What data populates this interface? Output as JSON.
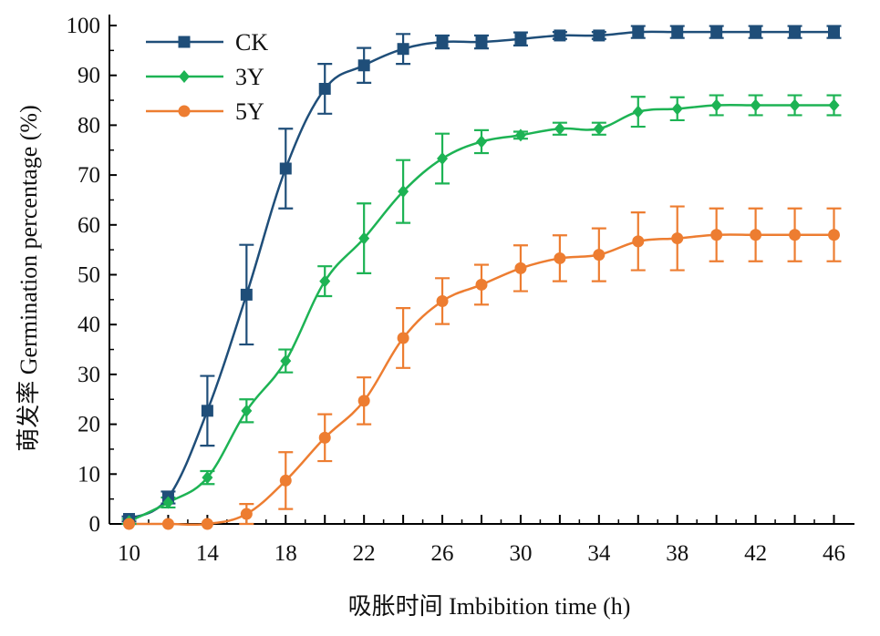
{
  "chart_data": {
    "type": "line",
    "xlabel": "吸胀时间 Imbibition time (h)",
    "ylabel": "萌发率 Germination percentage (%)",
    "xlim": [
      10,
      46
    ],
    "ylim": [
      0,
      100
    ],
    "x_ticks": [
      10,
      14,
      18,
      22,
      26,
      30,
      34,
      38,
      42,
      46
    ],
    "y_ticks": [
      0,
      10,
      20,
      30,
      40,
      50,
      60,
      70,
      80,
      90,
      100
    ],
    "grid": false,
    "legend_position": "top-left",
    "x": [
      10,
      12,
      14,
      16,
      18,
      20,
      22,
      24,
      26,
      28,
      30,
      32,
      34,
      36,
      38,
      40,
      42,
      44,
      46
    ],
    "series": [
      {
        "name": "CK",
        "color": "#1f4e79",
        "marker": "square",
        "values": [
          1,
          5.3,
          22.7,
          46,
          71.3,
          87.3,
          92,
          95.3,
          96.7,
          96.7,
          97.3,
          98,
          98,
          98.7,
          98.7,
          98.7,
          98.7,
          98.7,
          98.7
        ],
        "errors": [
          0.5,
          1.2,
          7,
          10,
          8,
          5,
          3.5,
          3,
          1.3,
          1.3,
          1.3,
          0.7,
          0.7,
          1.2,
          1.2,
          1.2,
          1.2,
          1.2,
          1.2
        ]
      },
      {
        "name": "3Y",
        "color": "#1db354",
        "marker": "diamond",
        "values": [
          0.5,
          4.3,
          9.3,
          22.7,
          32.7,
          48.7,
          57.3,
          66.7,
          73.3,
          76.7,
          78,
          79.3,
          79.3,
          82.7,
          83.3,
          84,
          84,
          84,
          84
        ],
        "errors": [
          0.5,
          1,
          1.3,
          2.3,
          2.3,
          3,
          7,
          6.3,
          5,
          2.3,
          0.7,
          1.2,
          1.2,
          3,
          2.3,
          2,
          2,
          2,
          2
        ]
      },
      {
        "name": "5Y",
        "color": "#ed7d31",
        "marker": "circle",
        "values": [
          0,
          0,
          0,
          2,
          8.7,
          17.3,
          24.7,
          37.3,
          44.7,
          48,
          51.3,
          53.3,
          54,
          56.7,
          57.3,
          58,
          58,
          58,
          58
        ],
        "errors": [
          0,
          0,
          0,
          2,
          5.7,
          4.7,
          4.7,
          6,
          4.6,
          4,
          4.6,
          4.6,
          5.3,
          5.8,
          6.4,
          5.3,
          5.3,
          5.3,
          5.3
        ]
      }
    ]
  }
}
